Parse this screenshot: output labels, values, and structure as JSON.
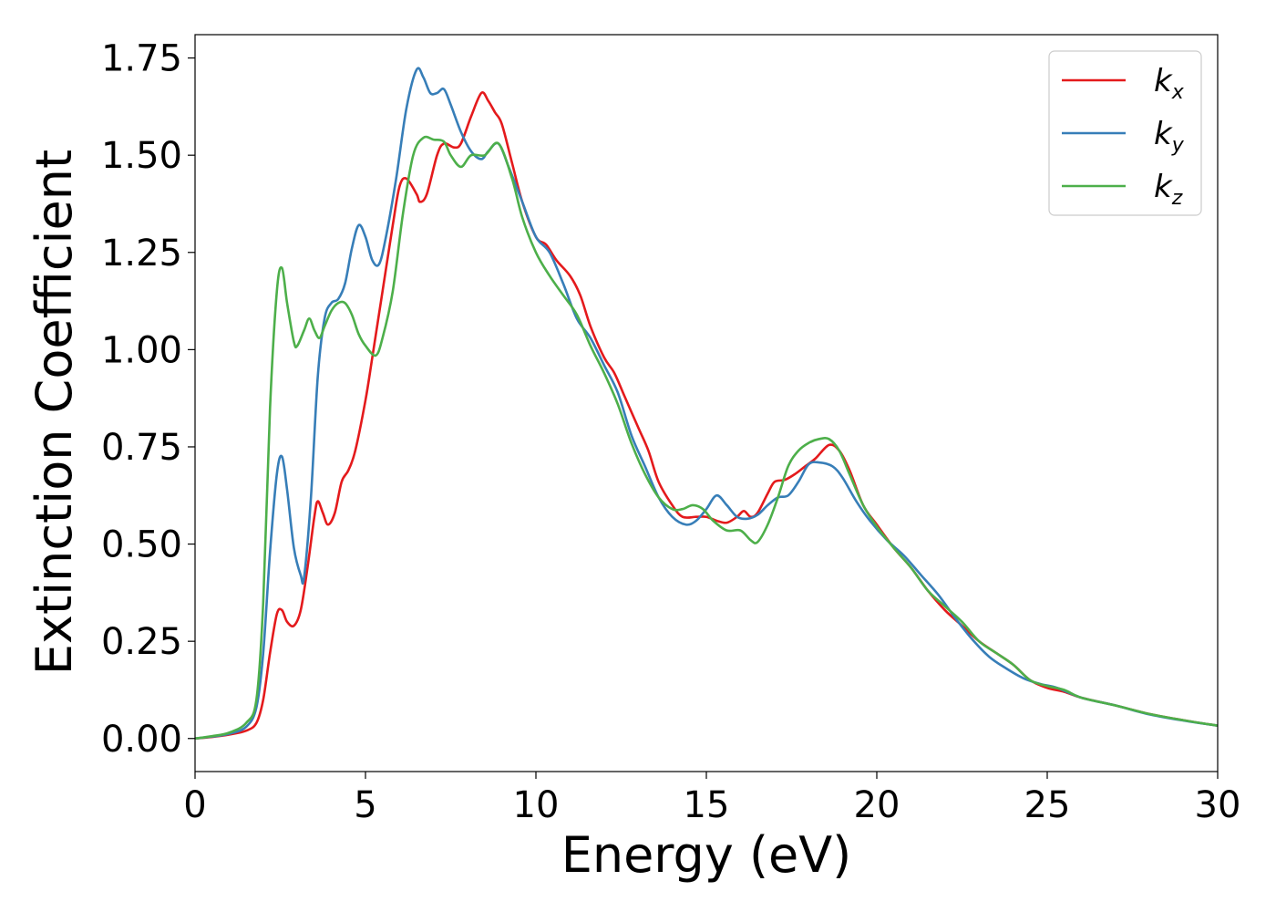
{
  "chart_data": {
    "type": "line",
    "xlabel": "Energy (eV)",
    "ylabel": "Extinction Coefficient",
    "xlim": [
      0,
      30
    ],
    "ylim": [
      -0.085,
      1.81
    ],
    "xticks": [
      "0",
      "5",
      "10",
      "15",
      "20",
      "25",
      "30"
    ],
    "xtick_values": [
      0,
      5,
      10,
      15,
      20,
      25,
      30
    ],
    "yticks": [
      "0.00",
      "0.25",
      "0.50",
      "0.75",
      "1.00",
      "1.25",
      "1.50",
      "1.75"
    ],
    "ytick_values": [
      0,
      0.25,
      0.5,
      0.75,
      1.0,
      1.25,
      1.5,
      1.75
    ],
    "grid": false,
    "legend_position": "top-right",
    "series": [
      {
        "name_base": "k",
        "name_sub": "x",
        "color": "#e41a1c",
        "points": [
          [
            0,
            0
          ],
          [
            0.5,
            0.004
          ],
          [
            1.0,
            0.01
          ],
          [
            1.5,
            0.02
          ],
          [
            1.8,
            0.04
          ],
          [
            2.0,
            0.1
          ],
          [
            2.2,
            0.22
          ],
          [
            2.4,
            0.32
          ],
          [
            2.55,
            0.33
          ],
          [
            2.7,
            0.3
          ],
          [
            2.9,
            0.29
          ],
          [
            3.1,
            0.33
          ],
          [
            3.3,
            0.44
          ],
          [
            3.5,
            0.57
          ],
          [
            3.6,
            0.61
          ],
          [
            3.75,
            0.58
          ],
          [
            3.9,
            0.55
          ],
          [
            4.1,
            0.58
          ],
          [
            4.3,
            0.66
          ],
          [
            4.5,
            0.69
          ],
          [
            4.7,
            0.74
          ],
          [
            5.0,
            0.87
          ],
          [
            5.2,
            0.98
          ],
          [
            5.5,
            1.15
          ],
          [
            5.8,
            1.32
          ],
          [
            6.0,
            1.42
          ],
          [
            6.2,
            1.44
          ],
          [
            6.5,
            1.4
          ],
          [
            6.6,
            1.38
          ],
          [
            6.8,
            1.4
          ],
          [
            7.1,
            1.5
          ],
          [
            7.3,
            1.53
          ],
          [
            7.6,
            1.52
          ],
          [
            7.8,
            1.53
          ],
          [
            8.1,
            1.6
          ],
          [
            8.4,
            1.66
          ],
          [
            8.6,
            1.64
          ],
          [
            8.8,
            1.61
          ],
          [
            9.0,
            1.58
          ],
          [
            9.3,
            1.48
          ],
          [
            9.6,
            1.38
          ],
          [
            10.0,
            1.29
          ],
          [
            10.3,
            1.27
          ],
          [
            10.6,
            1.23
          ],
          [
            11.0,
            1.19
          ],
          [
            11.3,
            1.14
          ],
          [
            11.6,
            1.06
          ],
          [
            12.0,
            0.98
          ],
          [
            12.3,
            0.94
          ],
          [
            12.6,
            0.88
          ],
          [
            13.0,
            0.8
          ],
          [
            13.3,
            0.74
          ],
          [
            13.6,
            0.66
          ],
          [
            14.0,
            0.6
          ],
          [
            14.3,
            0.57
          ],
          [
            14.7,
            0.57
          ],
          [
            15.0,
            0.57
          ],
          [
            15.3,
            0.56
          ],
          [
            15.6,
            0.555
          ],
          [
            15.9,
            0.57
          ],
          [
            16.1,
            0.585
          ],
          [
            16.3,
            0.57
          ],
          [
            16.5,
            0.58
          ],
          [
            16.8,
            0.63
          ],
          [
            17.0,
            0.66
          ],
          [
            17.3,
            0.665
          ],
          [
            17.6,
            0.68
          ],
          [
            17.9,
            0.7
          ],
          [
            18.2,
            0.72
          ],
          [
            18.6,
            0.755
          ],
          [
            18.9,
            0.74
          ],
          [
            19.2,
            0.69
          ],
          [
            19.6,
            0.6
          ],
          [
            20.0,
            0.55
          ],
          [
            20.5,
            0.49
          ],
          [
            21.0,
            0.44
          ],
          [
            21.5,
            0.38
          ],
          [
            22.0,
            0.33
          ],
          [
            22.5,
            0.29
          ],
          [
            23.0,
            0.25
          ],
          [
            23.5,
            0.22
          ],
          [
            24.0,
            0.19
          ],
          [
            24.5,
            0.15
          ],
          [
            25.0,
            0.13
          ],
          [
            25.5,
            0.12
          ],
          [
            26.0,
            0.105
          ],
          [
            27.0,
            0.085
          ],
          [
            28.0,
            0.063
          ],
          [
            29.0,
            0.047
          ],
          [
            30.0,
            0.033
          ]
        ]
      },
      {
        "name_base": "k",
        "name_sub": "y",
        "color": "#377eb8",
        "points": [
          [
            0,
            0
          ],
          [
            0.5,
            0.005
          ],
          [
            1.0,
            0.012
          ],
          [
            1.5,
            0.03
          ],
          [
            1.8,
            0.08
          ],
          [
            2.0,
            0.22
          ],
          [
            2.2,
            0.48
          ],
          [
            2.4,
            0.68
          ],
          [
            2.55,
            0.725
          ],
          [
            2.7,
            0.64
          ],
          [
            2.9,
            0.49
          ],
          [
            3.1,
            0.42
          ],
          [
            3.2,
            0.415
          ],
          [
            3.4,
            0.62
          ],
          [
            3.6,
            0.93
          ],
          [
            3.8,
            1.08
          ],
          [
            4.0,
            1.12
          ],
          [
            4.2,
            1.13
          ],
          [
            4.4,
            1.17
          ],
          [
            4.6,
            1.26
          ],
          [
            4.8,
            1.32
          ],
          [
            5.0,
            1.29
          ],
          [
            5.2,
            1.23
          ],
          [
            5.4,
            1.22
          ],
          [
            5.6,
            1.29
          ],
          [
            5.9,
            1.44
          ],
          [
            6.2,
            1.62
          ],
          [
            6.5,
            1.72
          ],
          [
            6.7,
            1.7
          ],
          [
            6.9,
            1.66
          ],
          [
            7.1,
            1.66
          ],
          [
            7.3,
            1.67
          ],
          [
            7.5,
            1.63
          ],
          [
            7.8,
            1.56
          ],
          [
            8.1,
            1.51
          ],
          [
            8.4,
            1.49
          ],
          [
            8.6,
            1.51
          ],
          [
            8.9,
            1.53
          ],
          [
            9.2,
            1.47
          ],
          [
            9.6,
            1.38
          ],
          [
            10.0,
            1.29
          ],
          [
            10.4,
            1.25
          ],
          [
            10.8,
            1.17
          ],
          [
            11.2,
            1.08
          ],
          [
            11.6,
            1.03
          ],
          [
            12.0,
            0.96
          ],
          [
            12.4,
            0.89
          ],
          [
            12.8,
            0.78
          ],
          [
            13.2,
            0.7
          ],
          [
            13.6,
            0.62
          ],
          [
            14.0,
            0.57
          ],
          [
            14.4,
            0.55
          ],
          [
            14.7,
            0.56
          ],
          [
            15.0,
            0.59
          ],
          [
            15.3,
            0.625
          ],
          [
            15.6,
            0.6
          ],
          [
            15.9,
            0.57
          ],
          [
            16.2,
            0.565
          ],
          [
            16.5,
            0.575
          ],
          [
            16.8,
            0.6
          ],
          [
            17.1,
            0.62
          ],
          [
            17.4,
            0.625
          ],
          [
            17.7,
            0.66
          ],
          [
            18.0,
            0.705
          ],
          [
            18.3,
            0.71
          ],
          [
            18.7,
            0.7
          ],
          [
            19.0,
            0.67
          ],
          [
            19.4,
            0.61
          ],
          [
            19.8,
            0.56
          ],
          [
            20.3,
            0.51
          ],
          [
            20.8,
            0.47
          ],
          [
            21.3,
            0.42
          ],
          [
            21.8,
            0.37
          ],
          [
            22.3,
            0.31
          ],
          [
            22.8,
            0.255
          ],
          [
            23.3,
            0.21
          ],
          [
            23.8,
            0.18
          ],
          [
            24.3,
            0.155
          ],
          [
            24.8,
            0.14
          ],
          [
            25.3,
            0.13
          ],
          [
            26.0,
            0.105
          ],
          [
            27.0,
            0.085
          ],
          [
            28.0,
            0.062
          ],
          [
            29.0,
            0.046
          ],
          [
            30.0,
            0.033
          ]
        ]
      },
      {
        "name_base": "k",
        "name_sub": "z",
        "color": "#4daf4a",
        "points": [
          [
            0,
            0
          ],
          [
            0.5,
            0.006
          ],
          [
            1.0,
            0.015
          ],
          [
            1.5,
            0.04
          ],
          [
            1.8,
            0.1
          ],
          [
            2.0,
            0.35
          ],
          [
            2.2,
            0.85
          ],
          [
            2.4,
            1.15
          ],
          [
            2.55,
            1.21
          ],
          [
            2.7,
            1.12
          ],
          [
            2.9,
            1.02
          ],
          [
            3.0,
            1.01
          ],
          [
            3.2,
            1.05
          ],
          [
            3.35,
            1.08
          ],
          [
            3.5,
            1.05
          ],
          [
            3.65,
            1.03
          ],
          [
            3.8,
            1.06
          ],
          [
            4.0,
            1.1
          ],
          [
            4.2,
            1.12
          ],
          [
            4.4,
            1.12
          ],
          [
            4.6,
            1.09
          ],
          [
            4.8,
            1.04
          ],
          [
            5.0,
            1.01
          ],
          [
            5.3,
            0.985
          ],
          [
            5.5,
            1.03
          ],
          [
            5.8,
            1.15
          ],
          [
            6.1,
            1.35
          ],
          [
            6.4,
            1.5
          ],
          [
            6.7,
            1.545
          ],
          [
            7.0,
            1.54
          ],
          [
            7.3,
            1.535
          ],
          [
            7.5,
            1.5
          ],
          [
            7.8,
            1.47
          ],
          [
            8.1,
            1.5
          ],
          [
            8.5,
            1.5
          ],
          [
            8.9,
            1.53
          ],
          [
            9.3,
            1.44
          ],
          [
            9.6,
            1.34
          ],
          [
            10.0,
            1.25
          ],
          [
            10.4,
            1.19
          ],
          [
            10.8,
            1.14
          ],
          [
            11.2,
            1.09
          ],
          [
            11.6,
            1.01
          ],
          [
            12.0,
            0.94
          ],
          [
            12.4,
            0.86
          ],
          [
            12.8,
            0.76
          ],
          [
            13.2,
            0.68
          ],
          [
            13.6,
            0.62
          ],
          [
            14.0,
            0.59
          ],
          [
            14.3,
            0.59
          ],
          [
            14.6,
            0.6
          ],
          [
            14.9,
            0.59
          ],
          [
            15.2,
            0.56
          ],
          [
            15.6,
            0.535
          ],
          [
            16.0,
            0.535
          ],
          [
            16.3,
            0.51
          ],
          [
            16.5,
            0.505
          ],
          [
            16.8,
            0.55
          ],
          [
            17.1,
            0.62
          ],
          [
            17.4,
            0.7
          ],
          [
            17.7,
            0.74
          ],
          [
            18.0,
            0.76
          ],
          [
            18.3,
            0.77
          ],
          [
            18.6,
            0.77
          ],
          [
            18.9,
            0.74
          ],
          [
            19.2,
            0.68
          ],
          [
            19.6,
            0.6
          ],
          [
            20.0,
            0.545
          ],
          [
            20.5,
            0.49
          ],
          [
            21.0,
            0.44
          ],
          [
            21.5,
            0.38
          ],
          [
            22.0,
            0.34
          ],
          [
            22.5,
            0.3
          ],
          [
            23.0,
            0.25
          ],
          [
            23.5,
            0.22
          ],
          [
            24.0,
            0.19
          ],
          [
            24.5,
            0.15
          ],
          [
            25.0,
            0.135
          ],
          [
            25.5,
            0.125
          ],
          [
            26.0,
            0.105
          ],
          [
            27.0,
            0.085
          ],
          [
            28.0,
            0.063
          ],
          [
            29.0,
            0.047
          ],
          [
            30.0,
            0.033
          ]
        ]
      }
    ]
  }
}
